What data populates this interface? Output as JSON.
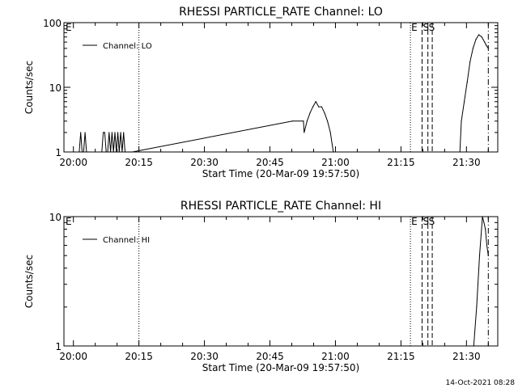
{
  "footer": {
    "timestamp": "14-Oct-2021 08:28"
  },
  "chart_data": [
    {
      "type": "line",
      "title": "RHESSI PARTICLE_RATE Channel: LO",
      "xlabel": "Start Time (20-Mar-09 19:57:50)",
      "ylabel": "Counts/sec",
      "yscale": "log",
      "xlim": [
        "19:57:50",
        "21:37:10"
      ],
      "ylim": [
        1,
        100
      ],
      "x_ticks": [
        "20:00",
        "20:15",
        "20:30",
        "20:45",
        "21:00",
        "21:15",
        "21:30"
      ],
      "y_ticks": [
        "1",
        "10",
        "100"
      ],
      "legend": {
        "position": "top-left",
        "entries": [
          "Channel: LO"
        ]
      },
      "series": [
        {
          "name": "Channel: LO",
          "x": [
            "20:01:20",
            "20:01:40",
            "20:02:00",
            "20:02:20",
            "20:02:40",
            "20:03:00",
            "20:03:20",
            "20:06:30",
            "20:06:50",
            "20:07:10",
            "20:07:30",
            "20:07:50",
            "20:08:10",
            "20:08:30",
            "20:08:50",
            "20:09:10",
            "20:09:30",
            "20:09:50",
            "20:10:10",
            "20:10:30",
            "20:10:50",
            "20:11:10",
            "20:11:30",
            "20:11:50",
            "20:12:10",
            "20:12:30",
            "20:12:50",
            "20:13:10",
            "20:13:30",
            "20:50:10",
            "20:52:40",
            "20:52:50",
            "20:53:30",
            "20:54:10",
            "20:54:50",
            "20:55:30",
            "20:56:10",
            "20:56:50",
            "20:57:30",
            "20:58:10",
            "20:58:50",
            "20:59:30",
            "21:28:30",
            "21:28:50",
            "21:29:30",
            "21:30:10",
            "21:30:50",
            "21:31:30",
            "21:32:10",
            "21:32:50",
            "21:33:30",
            "21:34:10",
            "21:34:30",
            "21:35:00"
          ],
          "values": [
            1,
            2,
            1,
            1,
            2,
            1,
            1,
            1,
            2,
            2,
            1,
            1,
            2,
            1,
            2,
            1,
            2,
            1,
            2,
            1,
            2,
            1,
            2,
            1,
            1,
            1,
            1,
            1,
            1,
            3,
            3,
            2,
            3,
            4,
            5,
            6,
            5,
            5,
            4,
            3,
            2,
            1,
            1,
            3,
            6,
            12,
            25,
            40,
            55,
            65,
            60,
            50,
            45,
            40
          ]
        }
      ],
      "annotations": [
        {
          "label": "E",
          "x": "19:57:55",
          "style": "text"
        },
        {
          "label": "",
          "x": "20:15:00",
          "style": "dotted"
        },
        {
          "label": "E",
          "x": "21:17:10",
          "style": "dotted"
        },
        {
          "label": "S",
          "x": "21:19:50",
          "style": "dashed"
        },
        {
          "label": "S",
          "x": "21:21:10",
          "style": "dashed"
        },
        {
          "label": "",
          "x": "21:22:10",
          "style": "dashed"
        },
        {
          "label": "",
          "x": "21:35:00",
          "style": "dashdot"
        }
      ]
    },
    {
      "type": "line",
      "title": "RHESSI PARTICLE_RATE Channel: HI",
      "xlabel": "Start Time (20-Mar-09 19:57:50)",
      "ylabel": "Counts/sec",
      "yscale": "log",
      "xlim": [
        "19:57:50",
        "21:37:10"
      ],
      "ylim": [
        1,
        10
      ],
      "x_ticks": [
        "20:00",
        "20:15",
        "20:30",
        "20:45",
        "21:00",
        "21:15",
        "21:30"
      ],
      "y_ticks": [
        "1",
        "10"
      ],
      "legend": {
        "position": "top-left",
        "entries": [
          "Channel: HI"
        ]
      },
      "series": [
        {
          "name": "Channel: HI",
          "x": [
            "21:31:40",
            "21:32:20",
            "21:33:00",
            "21:33:40",
            "21:34:00",
            "21:34:20",
            "21:34:40",
            "21:35:00"
          ],
          "values": [
            1,
            2,
            5,
            10,
            9,
            8,
            6,
            5
          ]
        }
      ],
      "annotations": [
        {
          "label": "E",
          "x": "19:57:55",
          "style": "text"
        },
        {
          "label": "",
          "x": "20:15:00",
          "style": "dotted"
        },
        {
          "label": "E",
          "x": "21:17:10",
          "style": "dotted"
        },
        {
          "label": "S",
          "x": "21:19:50",
          "style": "dashed"
        },
        {
          "label": "S",
          "x": "21:21:10",
          "style": "dashed"
        },
        {
          "label": "",
          "x": "21:22:10",
          "style": "dashed"
        },
        {
          "label": "",
          "x": "21:35:00",
          "style": "dashdot"
        }
      ]
    }
  ]
}
